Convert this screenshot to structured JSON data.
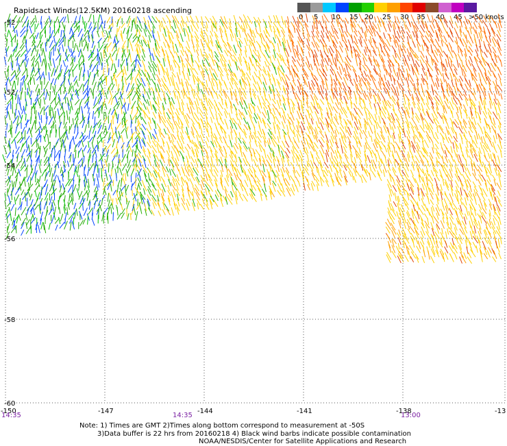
{
  "header": {
    "title": "Rapidsact Winds(12.5KM) 20160218 ascending"
  },
  "color_scale": {
    "labels": [
      "0",
      "5",
      "10",
      "15",
      "20",
      "25",
      "30",
      "35",
      "40",
      "45",
      ">50 knots"
    ],
    "colors": [
      "#555555",
      "#9a9a9a",
      "#00c8ff",
      "#0044ff",
      "#00a000",
      "#22d000",
      "#ffd000",
      "#ffa000",
      "#ff4400",
      "#e00000",
      "#8b4a2a",
      "#d060d0",
      "#c000c0",
      "#5a1aa0"
    ]
  },
  "chart_data": {
    "type": "map",
    "x_axis": {
      "ticks": [
        "-150",
        "-147",
        "-144",
        "-141",
        "-138",
        "-13"
      ],
      "range": [
        -150,
        -135
      ]
    },
    "y_axis": {
      "ticks": [
        "-52",
        "-52",
        "-54",
        "-56",
        "-58",
        "-60"
      ],
      "range": [
        -60,
        -52
      ]
    },
    "grid": "dotted",
    "time_labels": [
      "14:35",
      "14:35",
      "13:00"
    ]
  },
  "notes": {
    "line1": "Note: 1) Times are GMT 2)Times along bottom correspond to measurement at -50S",
    "line2": "3)Data buffer is 22 hrs from 20160218 4) Black wind barbs indicate possible contamination",
    "line3": "NOAA/NESDIS/Center for Satellite Applications and Research"
  }
}
